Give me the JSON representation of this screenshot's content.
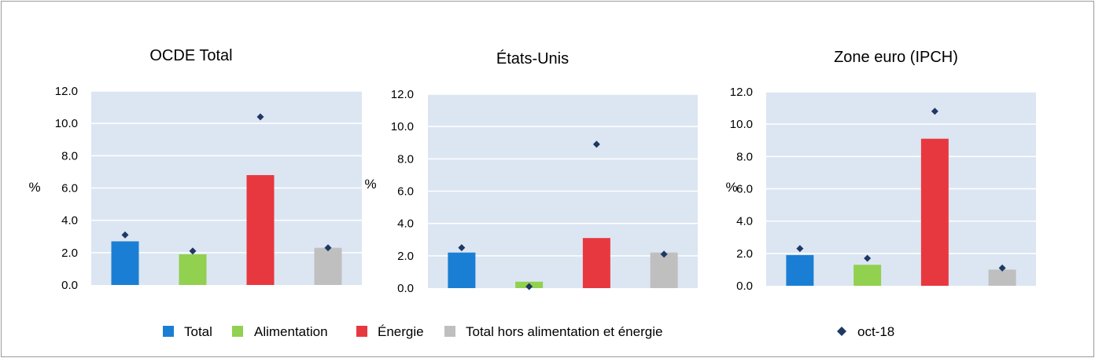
{
  "colors": {
    "plot_background": "#dce6f2",
    "grid": "#ffffff",
    "marker": "#1f3864"
  },
  "legend": {
    "items": [
      {
        "label": "Total",
        "color": "#1a7fd4",
        "shape": "square"
      },
      {
        "label": "Alimentation",
        "color": "#92d050",
        "shape": "square"
      },
      {
        "label": "Énergie",
        "color": "#e8383f",
        "shape": "square"
      },
      {
        "label": "Total hors alimentation et énergie",
        "color": "#bfbfbf",
        "shape": "square"
      },
      {
        "label": "oct-18",
        "color": "#1f3864",
        "shape": "diamond"
      }
    ]
  },
  "chart_data": [
    {
      "type": "bar",
      "title": "OCDE Total",
      "ylabel": "%",
      "ylim": [
        0,
        12
      ],
      "yticks": [
        "0.0",
        "2.0",
        "4.0",
        "6.0",
        "8.0",
        "10.0",
        "12.0"
      ],
      "categories": [
        "Total",
        "Alimentation",
        "Énergie",
        "Total hors alimentation et énergie"
      ],
      "series": [
        {
          "values": [
            2.7,
            1.9,
            6.8,
            2.3
          ]
        },
        {
          "name": "oct-18",
          "marker": "diamond",
          "values": [
            3.1,
            2.1,
            10.4,
            2.3
          ]
        }
      ],
      "grid": true
    },
    {
      "type": "bar",
      "title": "États-Unis",
      "ylabel": "%",
      "ylim": [
        0,
        12
      ],
      "yticks": [
        "0.0",
        "2.0",
        "4.0",
        "6.0",
        "8.0",
        "10.0",
        "12.0"
      ],
      "categories": [
        "Total",
        "Alimentation",
        "Énergie",
        "Total hors alimentation et énergie"
      ],
      "series": [
        {
          "values": [
            2.2,
            0.4,
            3.1,
            2.2
          ]
        },
        {
          "name": "oct-18",
          "marker": "diamond",
          "values": [
            2.5,
            0.1,
            8.9,
            2.1
          ]
        }
      ],
      "grid": true
    },
    {
      "type": "bar",
      "title": "Zone euro (IPCH)",
      "ylabel": "%",
      "ylim": [
        0,
        12
      ],
      "yticks": [
        "0.0",
        "2.0",
        "4.0",
        "6.0",
        "8.0",
        "10.0",
        "12.0"
      ],
      "categories": [
        "Total",
        "Alimentation",
        "Énergie",
        "Total hors alimentation et énergie"
      ],
      "series": [
        {
          "values": [
            1.9,
            1.3,
            9.1,
            1.0
          ]
        },
        {
          "name": "oct-18",
          "marker": "diamond",
          "values": [
            2.3,
            1.7,
            10.8,
            1.1
          ]
        }
      ],
      "grid": true
    }
  ]
}
